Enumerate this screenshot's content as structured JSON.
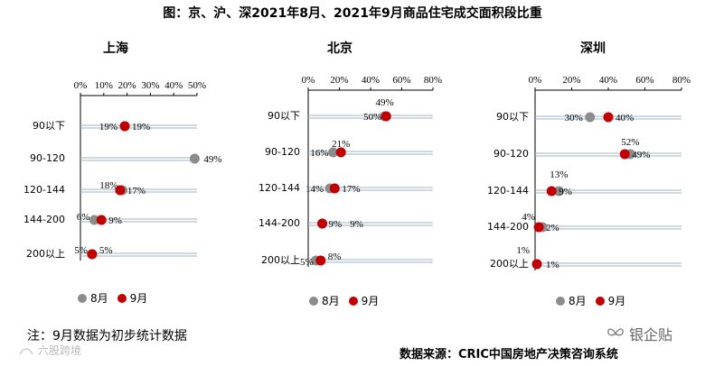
{
  "title": "图：京、沪、深2021年8月、2021年9月商品住宅成交面积段比重",
  "colors": {
    "aug": "#8c8c8c",
    "sep": "#c00000",
    "grid": "#9eb3c4",
    "axis": "#000000"
  },
  "legend": {
    "aug": "8月",
    "sep": "9月"
  },
  "note": "注：9月数据为初步统计数据",
  "source": "数据来源：CRIC中国房地产决策咨询系统",
  "brand": "银企贴",
  "watermark": "六股跨境",
  "chart_data": [
    {
      "type": "scatter",
      "title": "上海",
      "categories": [
        "90以下",
        "90-120",
        "120-144",
        "144-200",
        "200以上"
      ],
      "x_ticks": [
        "0%",
        "10%",
        "20%",
        "30%",
        "40%",
        "50%"
      ],
      "xlim": [
        0,
        50
      ],
      "series": [
        {
          "name": "8月",
          "values": [
            19,
            49,
            18,
            6,
            5
          ],
          "labels": [
            "19%",
            "49%",
            "18%",
            "6%",
            "5%"
          ]
        },
        {
          "name": "9月",
          "values": [
            19,
            null,
            17,
            9,
            5
          ],
          "labels": [
            "19%",
            "",
            "17%",
            "9%",
            "5%"
          ]
        }
      ]
    },
    {
      "type": "scatter",
      "title": "北京",
      "categories": [
        "90以下",
        "90-120",
        "120-144",
        "144-200",
        "200以上"
      ],
      "x_ticks": [
        "0%",
        "20%",
        "40%",
        "60%",
        "80%"
      ],
      "xlim": [
        0,
        80
      ],
      "series": [
        {
          "name": "8月",
          "values": [
            49,
            16,
            14,
            9,
            5
          ],
          "labels": [
            "49%",
            "16%",
            "14%",
            "9%",
            "5%"
          ]
        },
        {
          "name": "9月",
          "values": [
            50,
            21,
            17,
            9,
            8
          ],
          "labels": [
            "50%",
            "21%",
            "17%",
            "9%",
            "8%"
          ]
        }
      ]
    },
    {
      "type": "scatter",
      "title": "深圳",
      "categories": [
        "90以下",
        "90-120",
        "120-144",
        "144-200",
        "200以上"
      ],
      "x_ticks": [
        "0%",
        "20%",
        "40%",
        "60%",
        "80%"
      ],
      "xlim": [
        0,
        80
      ],
      "series": [
        {
          "name": "8月",
          "values": [
            30,
            52,
            13,
            4,
            1
          ],
          "labels": [
            "30%",
            "52%",
            "13%",
            "4%",
            "1%"
          ]
        },
        {
          "name": "9月",
          "values": [
            40,
            49,
            9,
            2,
            1
          ],
          "labels": [
            "40%",
            "49%",
            "9%",
            "2%",
            "1%"
          ]
        }
      ]
    }
  ]
}
